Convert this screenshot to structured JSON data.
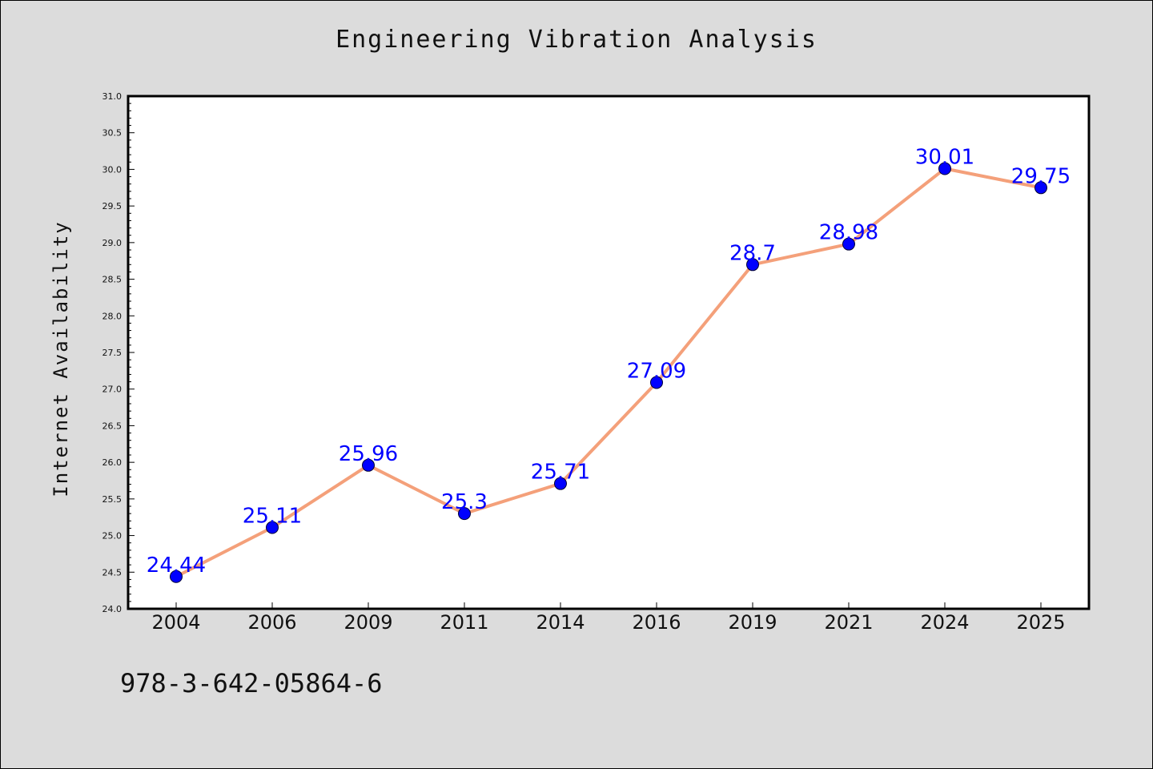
{
  "chart_data": {
    "type": "line",
    "title": "Engineering Vibration Analysis",
    "xlabel": "",
    "ylabel": "Internet Availability",
    "categories": [
      "2004",
      "2006",
      "2009",
      "2011",
      "2014",
      "2016",
      "2019",
      "2021",
      "2024",
      "2025"
    ],
    "series": [
      {
        "values": [
          24.44,
          25.11,
          25.96,
          25.3,
          25.71,
          27.09,
          28.7,
          28.98,
          30.01,
          29.75
        ],
        "data_labels": [
          "24.44",
          "25.11",
          "25.96",
          "25.3",
          "25.71",
          "27.09",
          "28.7",
          "28.98",
          "30.01",
          "29.75"
        ],
        "line_color": "#f4a07a",
        "marker_color": "#0000ff",
        "label_color": "#0000ff"
      }
    ],
    "ylim": [
      24.0,
      31.0
    ],
    "yticks": [
      "24.0",
      "24.5",
      "25.0",
      "25.5",
      "26.0",
      "26.5",
      "27.0",
      "27.5",
      "28.0",
      "28.5",
      "29.0",
      "29.5",
      "30.0",
      "30.5",
      "31.0"
    ],
    "grid": false,
    "legend": "none"
  },
  "footer": {
    "isbn": "978-3-642-05864-6"
  },
  "colors": {
    "background": "#dcdcdc",
    "plot_background": "#ffffff"
  }
}
